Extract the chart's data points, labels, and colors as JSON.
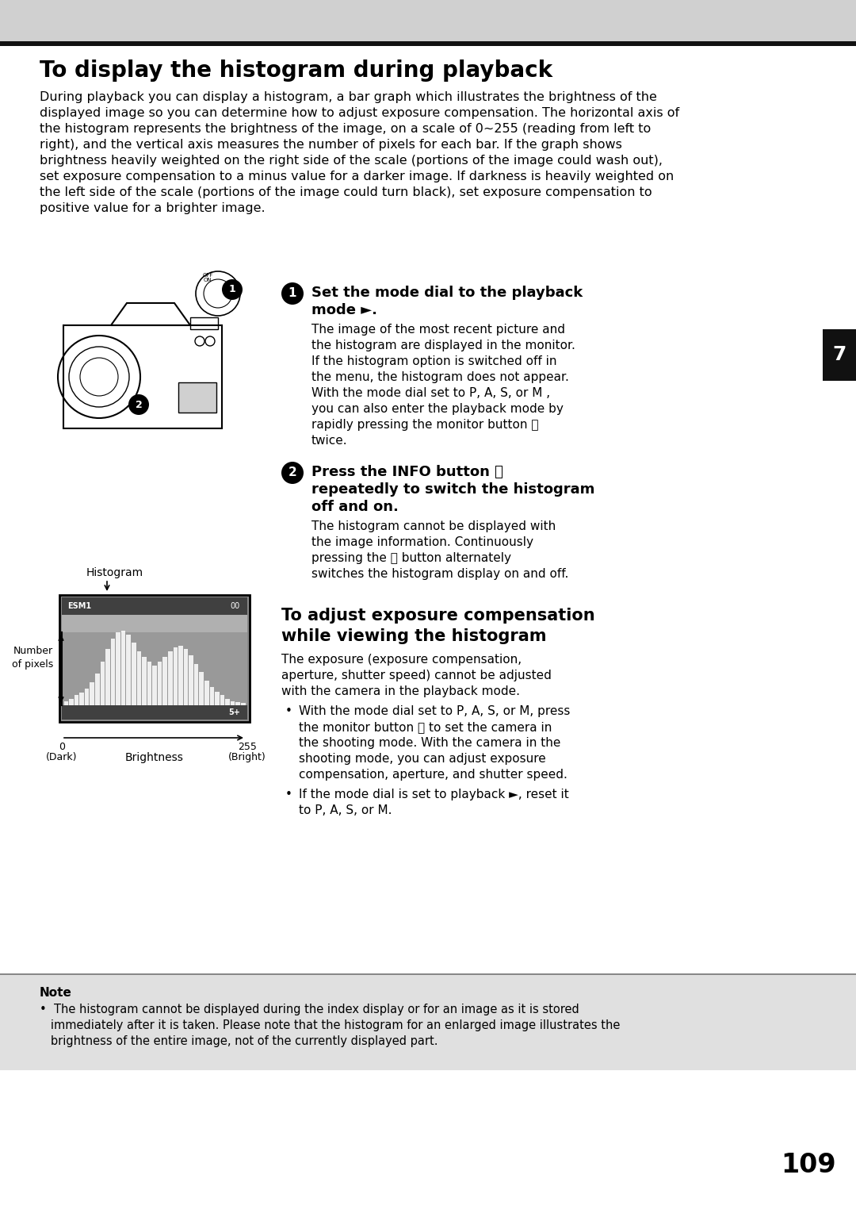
{
  "bg_color": "#ffffff",
  "header_bg": "#d0d0d0",
  "title": "To display the histogram during playback",
  "intro_lines": [
    "During playback you can display a histogram, a bar graph which illustrates the brightness of the",
    "displayed image so you can determine how to adjust exposure compensation. The horizontal axis of",
    "the histogram represents the brightness of the image, on a scale of 0~255 (reading from left to",
    "right), and the vertical axis measures the number of pixels for each bar. If the graph shows",
    "brightness heavily weighted on the right side of the scale (portions of the image could wash out),",
    "set exposure compensation to a minus value for a darker image. If darkness is heavily weighted on",
    "the left side of the scale (portions of the image could turn black), set exposure compensation to",
    "positive value for a brighter image."
  ],
  "step1_line1": "Set the mode dial to the playback",
  "step1_line2": "mode ►.",
  "step1_body": [
    "The image of the most recent picture and",
    "the histogram are displayed in the monitor.",
    "If the histogram option is switched off in",
    "the menu, the histogram does not appear.",
    "With the mode dial set to P, A, S, or M ,",
    "you can also enter the playback mode by",
    "rapidly pressing the monitor button Ⓞ",
    "twice."
  ],
  "step2_line1": "Press the INFO button Ⓝ",
  "step2_line2": "repeatedly to switch the histogram",
  "step2_line3": "off and on.",
  "step2_body": [
    "The histogram cannot be displayed with",
    "the image information. Continuously",
    "pressing the Ⓝ button alternately",
    "switches the histogram display on and off."
  ],
  "adj_title1": "To adjust exposure compensation",
  "adj_title2": "while viewing the histogram",
  "adj_body": [
    "The exposure (exposure compensation,",
    "aperture, shutter speed) cannot be adjusted",
    "with the camera in the playback mode."
  ],
  "bullet1_lines": [
    "With the mode dial set to P, A, S, or M, press",
    "the monitor button Ⓞ to set the camera in",
    "the shooting mode. With the camera in the",
    "shooting mode, you can adjust exposure",
    "compensation, aperture, and shutter speed."
  ],
  "bullet2_lines": [
    "If the mode dial is set to playback ►, reset it",
    "to P, A, S, or M."
  ],
  "note_label": "Note",
  "note_lines": [
    "•  The histogram cannot be displayed during the index display or for an image as it is stored",
    "   immediately after it is taken. Please note that the histogram for an enlarged image illustrates the",
    "   brightness of the entire image, not of the currently displayed part."
  ],
  "page_number": "109",
  "section_number": "7",
  "hist_bar_heights": [
    5,
    8,
    12,
    15,
    20,
    28,
    38,
    52,
    68,
    80,
    88,
    90,
    85,
    75,
    65,
    58,
    52,
    48,
    52,
    58,
    65,
    70,
    72,
    68,
    60,
    50,
    40,
    30,
    22,
    16,
    12,
    8,
    5,
    4,
    3
  ]
}
